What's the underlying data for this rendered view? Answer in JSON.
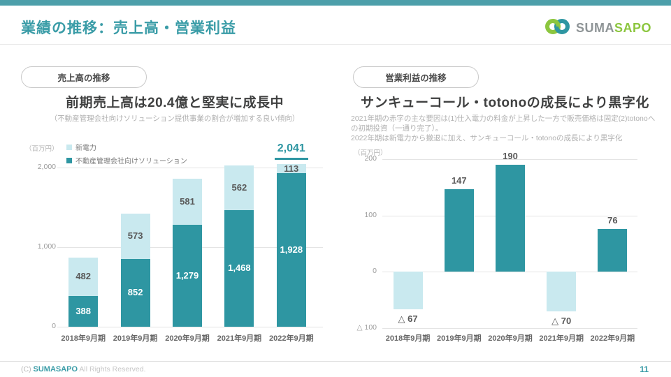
{
  "header": {
    "title": "業績の推移：売上高・営業利益",
    "logo_text_gray": "SUMA",
    "logo_text_green": "SAPO"
  },
  "colors": {
    "teal": "#2e96a2",
    "light_teal": "#c9e9ef",
    "accent": "#3a9ca7",
    "green": "#8cc63f",
    "label_gray": "#595959"
  },
  "left_panel": {
    "badge": "売上高の推移",
    "heading": "前期売上高は20.4億と堅実に成長中",
    "subheading": "（不動産管理会社向けソリューション提供事業の割合が増加する良い傾向）"
  },
  "right_panel": {
    "badge": "営業利益の推移",
    "heading": "サンキューコール・totonoの成長により黒字化",
    "sub_lines": [
      "2021年期の赤字の主な要因は(1)仕入電力の料金が上昇した一方で販売価格は固定(2)totonoへの初期投資（一通り完了）。",
      "2022年期は新電力から撤退に加え、サンキューコール・totonoの成長により黒字化"
    ]
  },
  "chart_data": [
    {
      "type": "bar",
      "stacked": true,
      "title": "売上高の推移",
      "unit_label": "（百万円）",
      "categories": [
        "2018年9月期",
        "2019年9月期",
        "2020年9月期",
        "2021年9月期",
        "2022年9月期"
      ],
      "series": [
        {
          "name": "不動産管理会社向けソリューション",
          "color_key": "teal",
          "values": [
            388,
            852,
            1279,
            1468,
            1928
          ]
        },
        {
          "name": "新電力",
          "color_key": "light_teal",
          "values": [
            482,
            573,
            581,
            562,
            113
          ]
        }
      ],
      "legend": [
        {
          "label": "新電力",
          "color_key": "light_teal"
        },
        {
          "label": "不動産管理会社向けソリューション",
          "color_key": "teal"
        }
      ],
      "total_label": {
        "index": 4,
        "text": "2,041"
      },
      "ylim": [
        0,
        2000
      ],
      "yticks": [
        {
          "value": 0,
          "label": "0"
        },
        {
          "value": 1000,
          "label": "1,000"
        },
        {
          "value": 2000,
          "label": "2,000"
        }
      ],
      "grid": true,
      "legend_position": "top-left"
    },
    {
      "type": "bar",
      "stacked": false,
      "title": "営業利益の推移",
      "unit_label": "（百万円）",
      "categories": [
        "2018年9月期",
        "2019年9月期",
        "2020年9月期",
        "2021年9月期",
        "2022年9月期"
      ],
      "values": [
        -67,
        147,
        190,
        -70,
        76
      ],
      "labels": [
        "△ 67",
        "147",
        "190",
        "△ 70",
        "76"
      ],
      "ylim": [
        -100,
        200
      ],
      "yticks": [
        {
          "value": -100,
          "label": "△ 100"
        },
        {
          "value": 0,
          "label": "0"
        },
        {
          "value": 100,
          "label": "100"
        },
        {
          "value": 200,
          "label": "200"
        }
      ],
      "grid": true
    }
  ],
  "footer": {
    "copyright_prefix": "(C)",
    "brand": "SUMASAPO",
    "rights": "All Rights Reserved.",
    "page_number": "11"
  }
}
